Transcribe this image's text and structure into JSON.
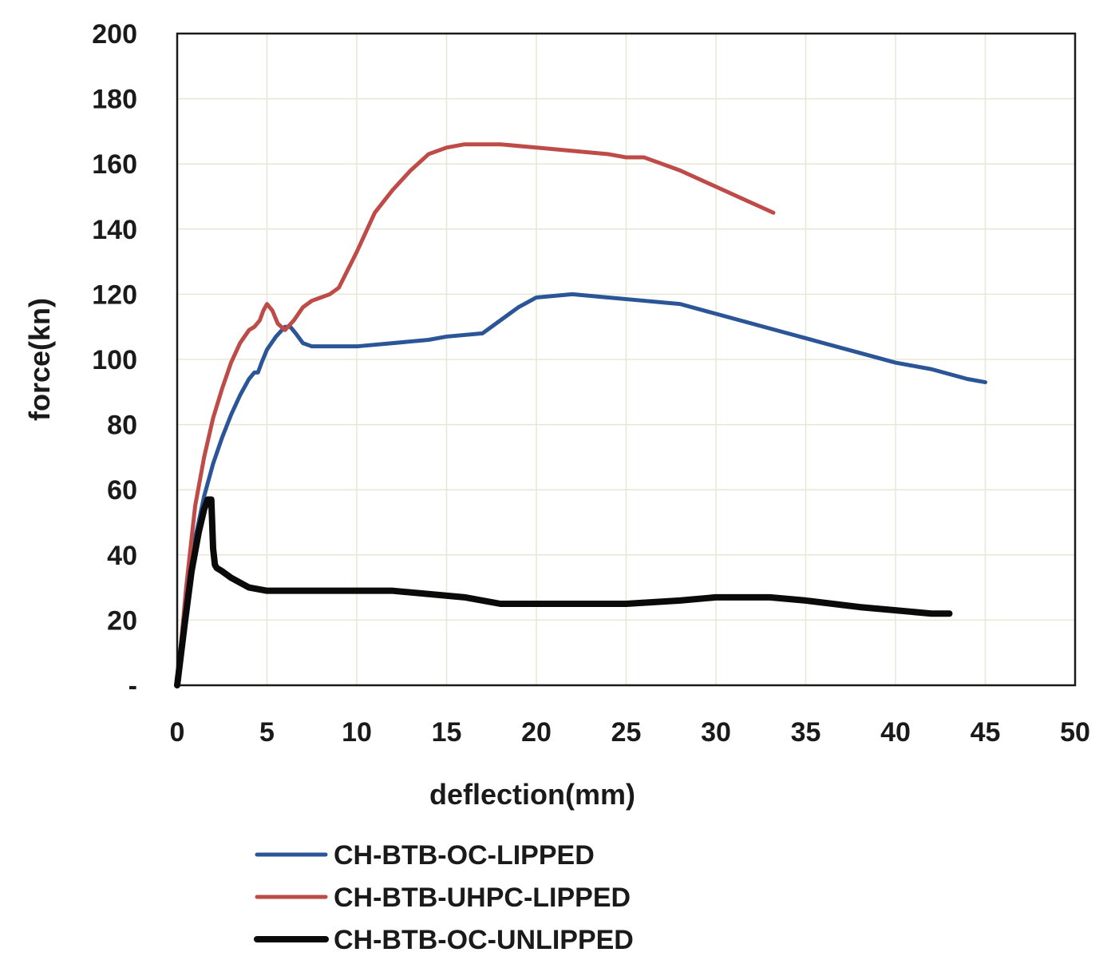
{
  "chart_data": {
    "type": "line",
    "title": "",
    "xlabel": "deflection(mm)",
    "ylabel": "force(kn)",
    "xlim": [
      0,
      50
    ],
    "ylim": [
      0,
      200
    ],
    "x_ticks": [
      "0",
      "5",
      "10",
      "15",
      "20",
      "25",
      "30",
      "35",
      "40",
      "45",
      "50"
    ],
    "y_ticks": [
      "-",
      "20",
      "40",
      "60",
      "80",
      "100",
      "120",
      "140",
      "160",
      "180",
      "200"
    ],
    "grid": true,
    "legend_position": "bottom-left",
    "series": [
      {
        "name": "CH-BTB-OC-LIPPED",
        "color": "#2a5597",
        "x": [
          0,
          0.5,
          1,
          1.5,
          2,
          2.5,
          3,
          3.5,
          4,
          4.3,
          4.5,
          4.7,
          5,
          5.5,
          6,
          6.3,
          6.6,
          7,
          7.5,
          8,
          9,
          10,
          12,
          14,
          15,
          17,
          18,
          19,
          20,
          22,
          24,
          26,
          28,
          30,
          32,
          34,
          36,
          38,
          40,
          42,
          44,
          45
        ],
        "y": [
          0,
          25,
          45,
          58,
          68,
          76,
          83,
          89,
          94,
          96,
          96,
          99,
          103,
          107,
          110,
          110,
          108,
          105,
          104,
          104,
          104,
          104,
          105,
          106,
          107,
          108,
          112,
          116,
          119,
          120,
          119,
          118,
          117,
          114,
          111,
          108,
          105,
          102,
          99,
          97,
          94,
          93
        ]
      },
      {
        "name": "CH-BTB-UHPC-LIPPED",
        "color": "#be4b48",
        "x": [
          0,
          0.5,
          1,
          1.5,
          2,
          2.5,
          3,
          3.5,
          4,
          4.3,
          4.6,
          4.8,
          5,
          5.3,
          5.6,
          6,
          6.5,
          7,
          7.5,
          8,
          8.5,
          9,
          10,
          11,
          12,
          13,
          14,
          15,
          16,
          17,
          18,
          20,
          22,
          24,
          25,
          26,
          27,
          28,
          30,
          32,
          33.2
        ],
        "y": [
          0,
          30,
          55,
          70,
          82,
          91,
          99,
          105,
          109,
          110,
          112,
          115,
          117,
          115,
          111,
          109,
          112,
          116,
          118,
          119,
          120,
          122,
          133,
          145,
          152,
          158,
          163,
          165,
          166,
          166,
          166,
          165,
          164,
          163,
          162,
          162,
          160,
          158,
          153,
          148,
          145
        ]
      },
      {
        "name": "CH-BTB-OC-UNLIPPED",
        "color": "#0a0a0a",
        "x": [
          0,
          0.4,
          0.8,
          1.2,
          1.5,
          1.7,
          1.9,
          2.0,
          2.1,
          2.2,
          2.5,
          3,
          4,
          5,
          6,
          8,
          10,
          12,
          14,
          16,
          18,
          20,
          22,
          25,
          28,
          30,
          33,
          35,
          38,
          40,
          42,
          43
        ],
        "y": [
          0,
          18,
          35,
          47,
          54,
          57,
          57,
          42,
          37,
          36,
          35,
          33,
          30,
          29,
          29,
          29,
          29,
          29,
          28,
          27,
          25,
          25,
          25,
          25,
          26,
          27,
          27,
          26,
          24,
          23,
          22,
          22
        ]
      }
    ]
  }
}
